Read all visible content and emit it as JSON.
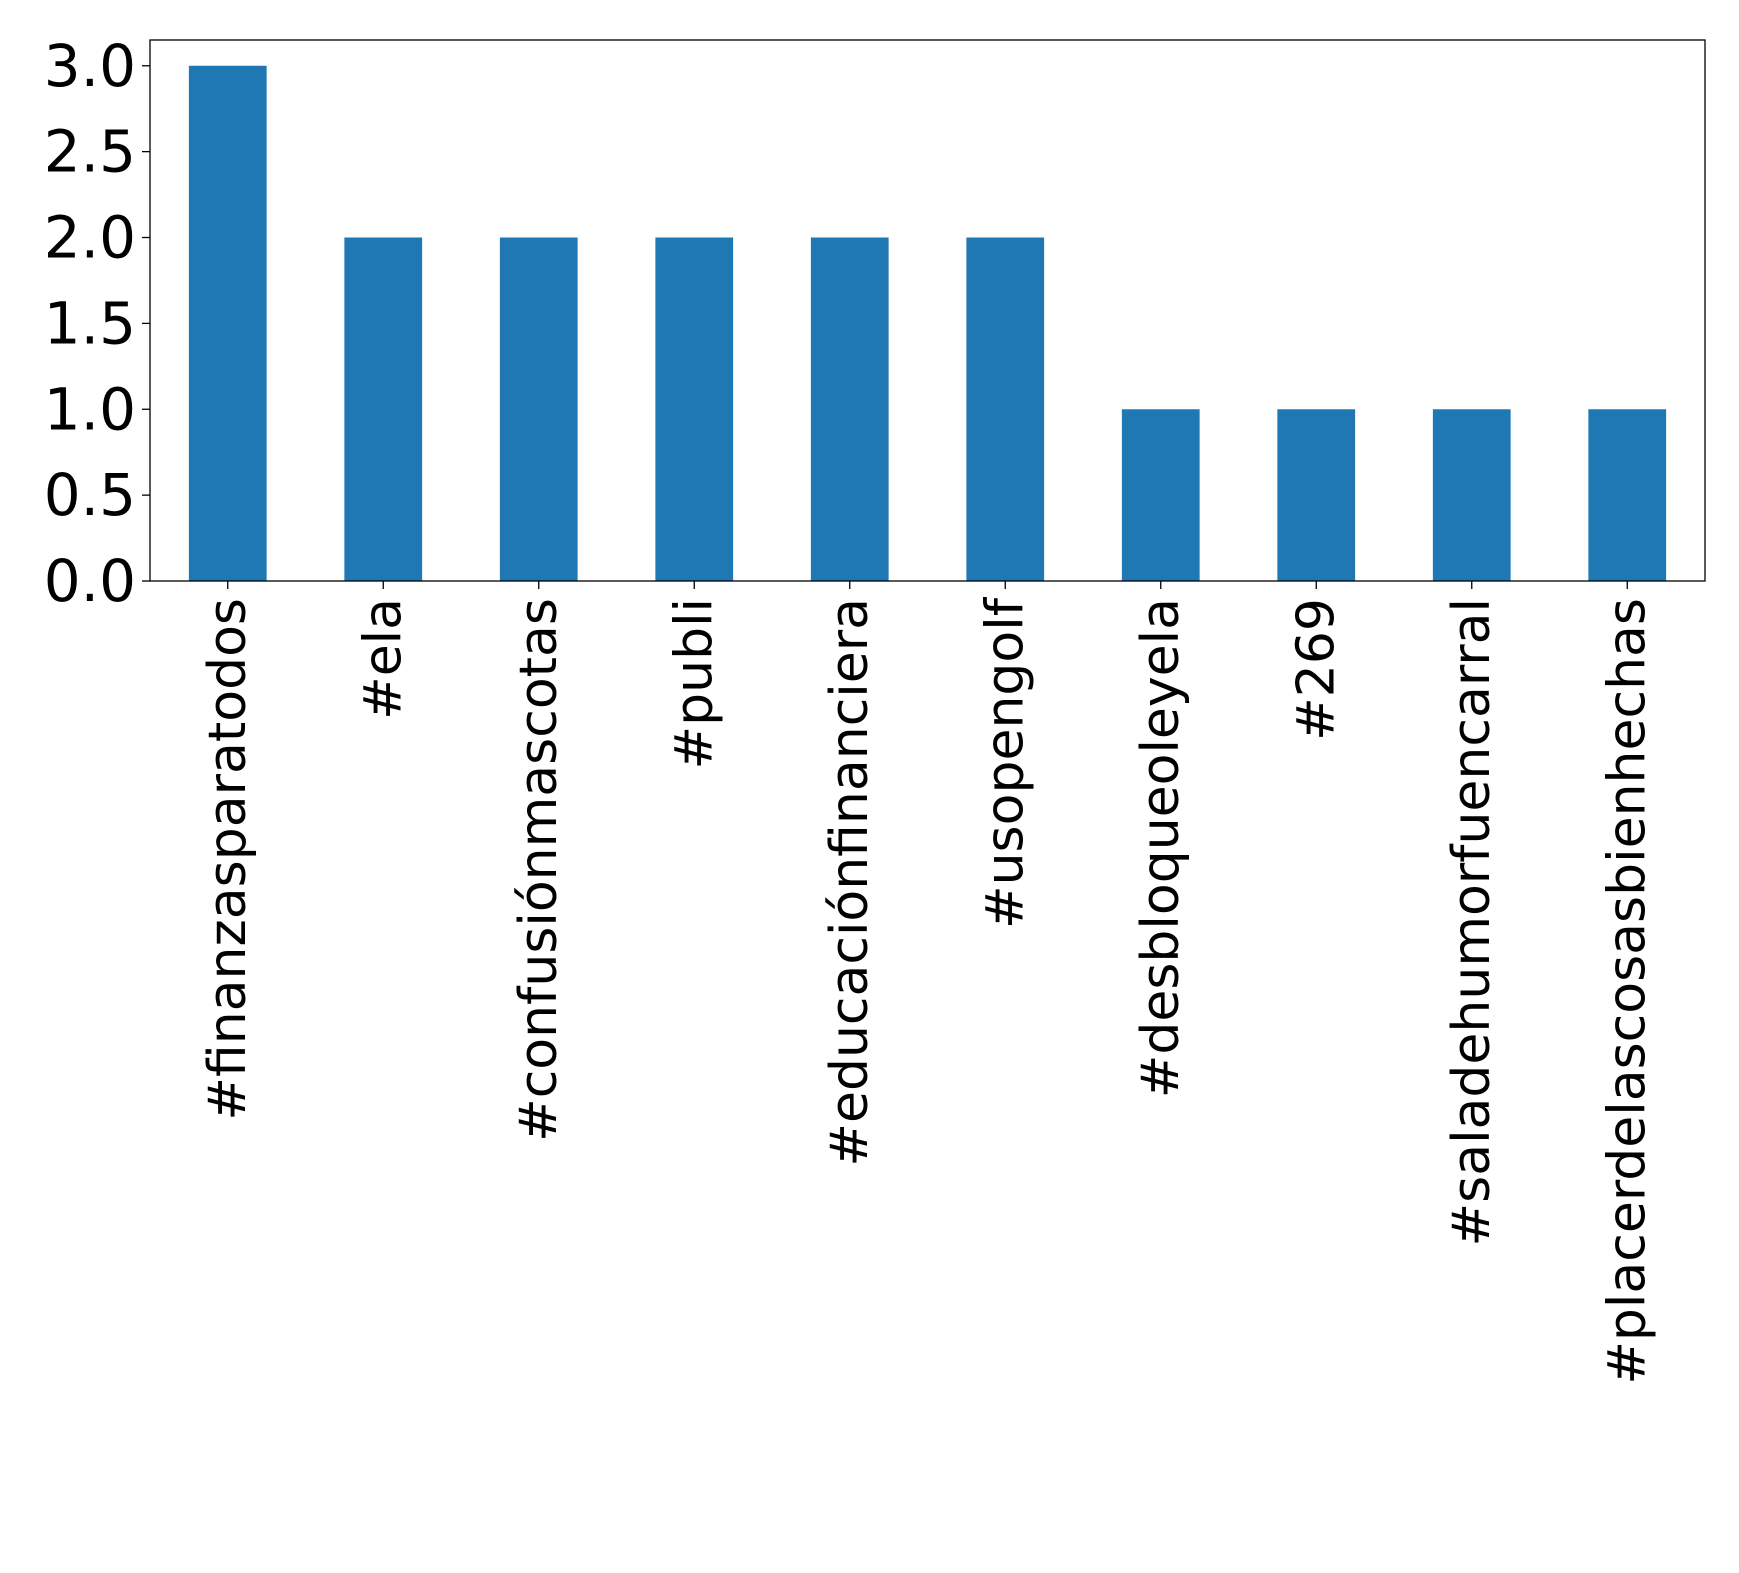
{
  "chart_data": {
    "type": "bar",
    "title": "",
    "xlabel": "",
    "ylabel": "",
    "categories": [
      "#finanzasparatodos",
      "#ela",
      "#confusiónmascotas",
      "#publi",
      "#educaciónfinanciera",
      "#usopengolf",
      "#desbloqueoleyela",
      "#269",
      "#saladehumorfuencarral",
      "#placerdelascosasbienhechas"
    ],
    "values": [
      3,
      2,
      2,
      2,
      2,
      2,
      1,
      1,
      1,
      1
    ],
    "ylim": [
      0,
      3.15
    ],
    "yticks": [
      0.0,
      0.5,
      1.0,
      1.5,
      2.0,
      2.5,
      3.0
    ],
    "ytick_labels": [
      "0.0",
      "0.5",
      "1.0",
      "1.5",
      "2.0",
      "2.5",
      "3.0"
    ],
    "bar_color": "#1f77b4",
    "grid": false,
    "legend": "none",
    "x_tick_rotation": "vertical"
  }
}
